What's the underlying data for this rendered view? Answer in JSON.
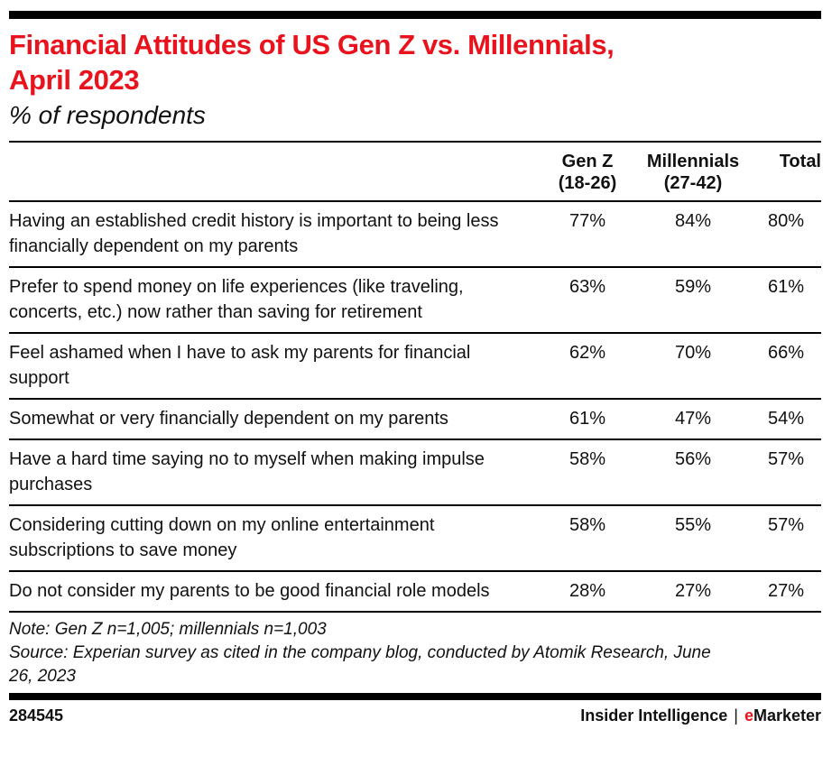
{
  "page": {
    "title_line1": "Financial Attitudes of US Gen Z vs. Millennials,",
    "title_line2": "April 2023",
    "subtitle": "% of respondents"
  },
  "table": {
    "column_headers": [
      {
        "line1": "Gen Z",
        "line2": "(18-26)"
      },
      {
        "line1": "Millennials",
        "line2": "(27-42)"
      },
      {
        "line1": "Total",
        "line2": ""
      }
    ],
    "rows": [
      {
        "label": "Having an established credit history is important to being less financially dependent on my parents",
        "gen_z": "77%",
        "millennials": "84%",
        "total": "80%"
      },
      {
        "label": "Prefer to spend money on life experiences (like traveling, concerts, etc.) now rather than saving for retirement",
        "gen_z": "63%",
        "millennials": "59%",
        "total": "61%"
      },
      {
        "label": "Feel ashamed when I have to ask my parents for financial support",
        "gen_z": "62%",
        "millennials": "70%",
        "total": "66%"
      },
      {
        "label": "Somewhat or very financially dependent on my parents",
        "gen_z": "61%",
        "millennials": "47%",
        "total": "54%"
      },
      {
        "label": "Have a hard time saying no to myself when making impulse purchases",
        "gen_z": "58%",
        "millennials": "56%",
        "total": "57%"
      },
      {
        "label": "Considering cutting down on my online entertainment subscriptions to save money",
        "gen_z": "58%",
        "millennials": "55%",
        "total": "57%"
      },
      {
        "label": "Do not consider my parents to be good financial role models",
        "gen_z": "28%",
        "millennials": "27%",
        "total": "27%"
      }
    ]
  },
  "footnotes": {
    "note": "Note: Gen Z n=1,005; millennials n=1,003",
    "source_line1": "Source: Experian survey as cited in the company blog, conducted by Atomik Research, June",
    "source_line2": "26, 2023"
  },
  "footer": {
    "chart_id": "284545",
    "brand_name": "Insider Intelligence",
    "brand_divider": "|",
    "brand_mark_e": "e",
    "brand_mark_rest": "Marketer"
  },
  "colors": {
    "accent_red": "#e8131c",
    "text_black": "#111111",
    "rule_black": "#000000"
  },
  "chart_data": {
    "type": "table",
    "title": "Financial Attitudes of US Gen Z vs. Millennials, April 2023",
    "subtitle": "% of respondents",
    "categories": [
      "Having an established credit history is important to being less financially dependent on my parents",
      "Prefer to spend money on life experiences (like traveling, concerts, etc.) now rather than saving for retirement",
      "Feel ashamed when I have to ask my parents for financial support",
      "Somewhat or very financially dependent on my parents",
      "Have a hard time saying no to myself when making impulse purchases",
      "Considering cutting down on my online entertainment subscriptions to save money",
      "Do not consider my parents to be good financial role models"
    ],
    "series": [
      {
        "name": "Gen Z (18-26)",
        "values": [
          77,
          63,
          62,
          61,
          58,
          58,
          28
        ]
      },
      {
        "name": "Millennials (27-42)",
        "values": [
          84,
          59,
          70,
          47,
          56,
          55,
          27
        ]
      },
      {
        "name": "Total",
        "values": [
          80,
          61,
          66,
          54,
          57,
          57,
          27
        ]
      }
    ],
    "unit": "% of respondents",
    "note": "Gen Z n=1,005; millennials n=1,003",
    "source": "Experian survey as cited in the company blog, conducted by Atomik Research, June 26, 2023",
    "chart_id": "284545"
  }
}
